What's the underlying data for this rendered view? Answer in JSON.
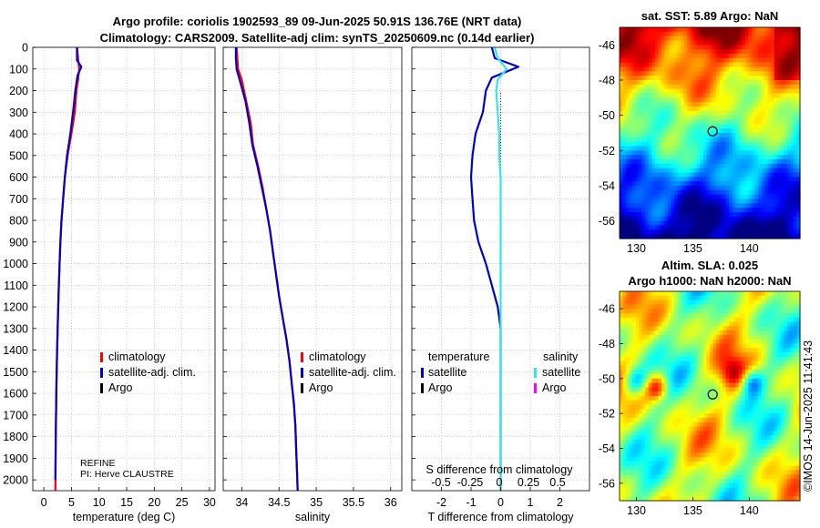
{
  "header": {
    "title_line1": "Argo profile: coriolis 1902593_89 09-Jun-2025 50.91S 136.76E (NRT data)",
    "title_line2": "Climatology: CARS2009. Satellite-adj clim: synTS_20250609.nc (0.14d earlier)"
  },
  "colors": {
    "climatology": "#ff0000",
    "satellite_adj": "#0000cc",
    "argo": "#000000",
    "sat_salinity": "#33e6e6",
    "argo_salinity": "#ff00ff"
  },
  "chart_data": [
    {
      "type": "line",
      "name": "temperature",
      "xlabel": "temperature (deg C)",
      "xlim": [
        -2,
        31
      ],
      "ylim": [
        0,
        2050
      ],
      "y_reversed": true,
      "xticks": [
        0,
        5,
        10,
        15,
        20,
        25,
        30
      ],
      "yticks": [
        0,
        100,
        200,
        300,
        400,
        500,
        600,
        700,
        800,
        900,
        1000,
        1100,
        1200,
        1300,
        1400,
        1500,
        1600,
        1700,
        1800,
        1900,
        2000
      ],
      "series": [
        {
          "name": "climatology",
          "color": "#ff0000",
          "x": [
            6.0,
            6.2,
            6.4,
            6.2,
            5.9,
            5.6,
            5.0,
            4.3,
            3.8,
            3.5,
            3.2,
            3.0,
            2.85,
            2.72,
            2.6,
            2.5,
            2.4,
            2.32,
            2.25,
            2.2,
            2.15,
            2.12,
            2.1
          ],
          "y": [
            0,
            50,
            100,
            150,
            200,
            300,
            400,
            500,
            600,
            700,
            800,
            900,
            1000,
            1100,
            1200,
            1300,
            1400,
            1500,
            1600,
            1700,
            1800,
            1900,
            2050
          ]
        },
        {
          "name": "satellite-adj. clim.",
          "color": "#0000cc",
          "x": [
            6.0,
            6.0,
            6.8,
            6.1,
            5.7,
            5.3,
            4.8,
            4.2,
            3.8,
            3.5,
            3.2,
            3.0,
            2.85,
            2.72,
            2.6,
            2.5,
            2.4,
            2.32,
            2.25,
            2.2,
            2.15,
            2.12,
            2.1
          ],
          "y": [
            0,
            60,
            90,
            130,
            200,
            300,
            400,
            500,
            600,
            700,
            800,
            900,
            1000,
            1100,
            1200,
            1300,
            1400,
            1500,
            1600,
            1700,
            1800,
            1900,
            2000
          ]
        }
      ],
      "legend": [
        "climatology",
        "satellite-adj. clim.",
        "Argo"
      ],
      "annotations": [
        "REFINE",
        "PI: Herve CLAUSTRE"
      ]
    },
    {
      "type": "line",
      "name": "salinity",
      "xlabel": "salinity",
      "xlim": [
        33.75,
        36.15
      ],
      "ylim": [
        0,
        2050
      ],
      "y_reversed": true,
      "xticks": [
        34,
        34.5,
        35,
        35.5,
        36
      ],
      "xticklabels": [
        "34",
        "34.5",
        "35",
        "35.5",
        "36"
      ],
      "series": [
        {
          "name": "climatology",
          "color": "#ff0000",
          "x": [
            33.93,
            33.94,
            33.95,
            34.0,
            34.06,
            34.12,
            34.15,
            34.22,
            34.28,
            34.33,
            34.38,
            34.42,
            34.46,
            34.5,
            34.55,
            34.6,
            34.64,
            34.67,
            34.7,
            34.72,
            34.73,
            34.74,
            34.75
          ],
          "y": [
            0,
            50,
            100,
            150,
            250,
            350,
            450,
            550,
            650,
            750,
            850,
            950,
            1050,
            1150,
            1250,
            1350,
            1450,
            1550,
            1650,
            1750,
            1850,
            1950,
            2050
          ]
        },
        {
          "name": "satellite-adj. clim.",
          "color": "#0000cc",
          "x": [
            33.92,
            33.92,
            33.93,
            33.97,
            34.05,
            34.1,
            34.14,
            34.21,
            34.27,
            34.33,
            34.38,
            34.42,
            34.46,
            34.5,
            34.55,
            34.6,
            34.64,
            34.67,
            34.7,
            34.72,
            34.73,
            34.74,
            34.75
          ],
          "y": [
            0,
            50,
            100,
            150,
            250,
            350,
            450,
            550,
            650,
            750,
            850,
            950,
            1050,
            1150,
            1250,
            1350,
            1450,
            1550,
            1650,
            1750,
            1850,
            1950,
            2050
          ]
        }
      ],
      "legend": [
        "climatology",
        "satellite-adj. clim.",
        "Argo"
      ]
    },
    {
      "type": "line",
      "name": "difference",
      "xlabel": "T difference from climatology",
      "top_xlabel": "S difference from climatology",
      "xlim": [
        -3,
        3
      ],
      "ylim": [
        0,
        2050
      ],
      "y_reversed": true,
      "xticks": [
        -2,
        -1,
        0,
        1,
        2
      ],
      "top_ticklabels": [
        "-0.5",
        "-0.25",
        "0",
        "0.25",
        "0.5"
      ],
      "series": [
        {
          "name": "satellite temperature",
          "color": "#0000cc",
          "x": [
            -0.3,
            -0.2,
            0.6,
            -0.3,
            -0.5,
            -0.6,
            -0.85,
            -0.95,
            -1.0,
            -0.95,
            -0.9,
            -0.75,
            -0.5,
            -0.3,
            -0.1,
            0.0,
            0.0,
            0.0,
            0.0,
            0.0
          ],
          "y": [
            0,
            50,
            90,
            140,
            200,
            300,
            400,
            500,
            600,
            700,
            800,
            900,
            1000,
            1100,
            1200,
            1300,
            1500,
            1700,
            1900,
            2050
          ]
        },
        {
          "name": "satellite salinity",
          "color": "#33e6e6",
          "x": [
            -0.2,
            -0.1,
            0.2,
            -0.1,
            -0.15,
            -0.1,
            -0.05,
            -0.05,
            0.0,
            0.0,
            0.0,
            0.0,
            0.0,
            0.0,
            0.0,
            0.0,
            0.0,
            0.0,
            0.0,
            0.0
          ],
          "y": [
            0,
            50,
            100,
            150,
            200,
            300,
            400,
            500,
            600,
            700,
            800,
            900,
            1000,
            1100,
            1200,
            1300,
            1500,
            1700,
            1900,
            2050
          ]
        }
      ],
      "legend_headers": [
        "temperature",
        "salinity"
      ],
      "legend": [
        "satellite",
        "Argo",
        "satellite",
        "Argo"
      ]
    },
    {
      "type": "heatmap",
      "name": "sst_map",
      "title": "sat. SST: 5.89 Argo: NaN",
      "xlim": [
        128.5,
        144.5
      ],
      "ylim": [
        -57,
        -45
      ],
      "xticks": [
        130,
        135,
        140
      ],
      "yticks": [
        -46,
        -48,
        -50,
        -52,
        -54,
        -56
      ],
      "marker": {
        "lon": 136.76,
        "lat": -50.91
      }
    },
    {
      "type": "heatmap",
      "name": "sla_map",
      "title_line1": "Altim. SLA: 0.025",
      "title_line2": "Argo h1000: NaN h2000: NaN",
      "xlim": [
        128.5,
        144.5
      ],
      "ylim": [
        -57,
        -45
      ],
      "xticks": [
        130,
        135,
        140
      ],
      "yticks": [
        -46,
        -48,
        -50,
        -52,
        -54,
        -56
      ],
      "marker": {
        "lon": 136.76,
        "lat": -50.91
      }
    }
  ],
  "footer": {
    "stamp": "©IMOS 14-Jun-2025 11:41:43"
  }
}
